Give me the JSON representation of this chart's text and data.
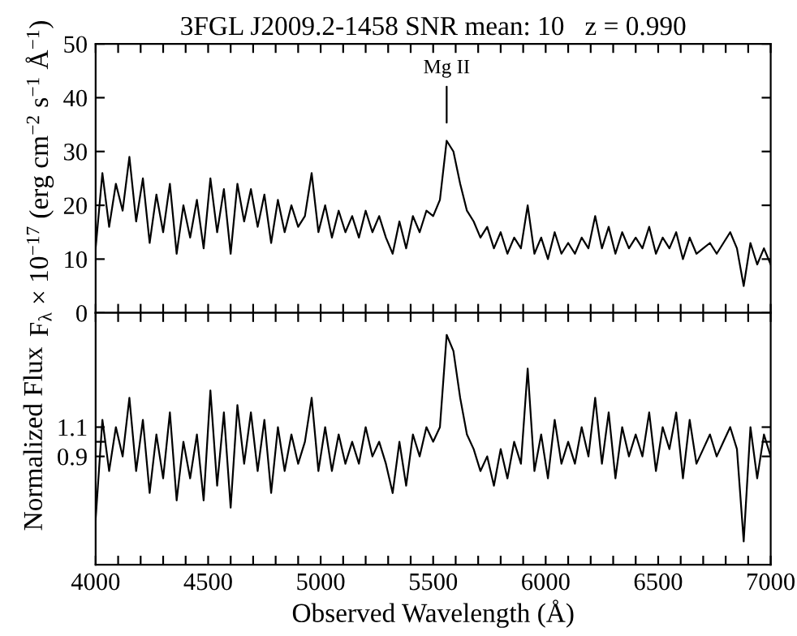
{
  "chart_data": [
    {
      "type": "line",
      "title": "3FGL J2009.2-1458 SNR mean: 10   z = 0.990",
      "ylabel": "F$_{λ}$ × 10$^{−17}$ (erg cm$^{−2}$ s$^{−1}$ Å$^{−1}$)",
      "x": [
        4000,
        4030,
        4060,
        4090,
        4120,
        4150,
        4180,
        4210,
        4240,
        4270,
        4300,
        4330,
        4360,
        4390,
        4420,
        4450,
        4480,
        4510,
        4540,
        4570,
        4600,
        4630,
        4660,
        4690,
        4720,
        4750,
        4780,
        4810,
        4840,
        4870,
        4900,
        4930,
        4960,
        4990,
        5020,
        5050,
        5080,
        5110,
        5140,
        5170,
        5200,
        5230,
        5260,
        5290,
        5320,
        5350,
        5380,
        5410,
        5440,
        5470,
        5500,
        5530,
        5560,
        5590,
        5620,
        5650,
        5680,
        5710,
        5740,
        5770,
        5800,
        5830,
        5860,
        5890,
        5920,
        5950,
        5980,
        6010,
        6040,
        6070,
        6100,
        6130,
        6160,
        6190,
        6220,
        6250,
        6280,
        6310,
        6340,
        6370,
        6400,
        6430,
        6460,
        6490,
        6520,
        6550,
        6580,
        6610,
        6640,
        6670,
        6700,
        6730,
        6760,
        6790,
        6820,
        6850,
        6880,
        6910,
        6940,
        6970,
        7000
      ],
      "series": [
        {
          "color": "#000000",
          "values": [
            12,
            26,
            16,
            24,
            19,
            29,
            17,
            25,
            13,
            22,
            15,
            24,
            11,
            20,
            14,
            21,
            12,
            25,
            15,
            23,
            11,
            24,
            17,
            23,
            16,
            22,
            13,
            21,
            15,
            20,
            16,
            18,
            26,
            15,
            20,
            14,
            19,
            15,
            18,
            14,
            19,
            15,
            18,
            14,
            11,
            17,
            12,
            18,
            15,
            19,
            18,
            21,
            32,
            30,
            24,
            19,
            17,
            14,
            16,
            12,
            15,
            11,
            14,
            12,
            20,
            11,
            14,
            10,
            15,
            11,
            13,
            11,
            14,
            12,
            18,
            12,
            16,
            11,
            15,
            12,
            14,
            12,
            16,
            11,
            14,
            12,
            15,
            10,
            14,
            11,
            12,
            13,
            11,
            13,
            15,
            12,
            5,
            13,
            9,
            12,
            9
          ]
        }
      ],
      "xlim": [
        4000,
        7000
      ],
      "xticks": [
        4000,
        {
          "value": 4100,
          "label": null
        },
        {
          "value": 4200,
          "label": null
        },
        {
          "value": 4300,
          "label": null
        },
        {
          "value": 4400,
          "label": null
        },
        4500,
        {
          "value": 4600,
          "label": null
        },
        {
          "value": 4700,
          "label": null
        },
        {
          "value": 4800,
          "label": null
        },
        {
          "value": 4900,
          "label": null
        },
        5000,
        {
          "value": 5100,
          "label": null
        },
        {
          "value": 5200,
          "label": null
        },
        {
          "value": 5300,
          "label": null
        },
        {
          "value": 5400,
          "label": null
        },
        5500,
        {
          "value": 5600,
          "label": null
        },
        {
          "value": 5700,
          "label": null
        },
        {
          "value": 5800,
          "label": null
        },
        {
          "value": 5900,
          "label": null
        },
        6000,
        {
          "value": 6100,
          "label": null
        },
        {
          "value": 6200,
          "label": null
        },
        {
          "value": 6300,
          "label": null
        },
        {
          "value": 6400,
          "label": null
        },
        6500,
        {
          "value": 6600,
          "label": null
        },
        {
          "value": 6700,
          "label": null
        },
        {
          "value": 6800,
          "label": null
        },
        {
          "value": 6900,
          "label": null
        },
        7000
      ],
      "ylim": [
        0,
        50
      ],
      "yticks": [
        0,
        10,
        20,
        30,
        40,
        50
      ],
      "tick_labels": "y",
      "grid": false,
      "legend": false,
      "marker": "none",
      "line_style": "solid",
      "annotations": [
        "Mg II"
      ]
    },
    {
      "type": "line",
      "xlabel": "Observed Wavelength (Å)",
      "ylabel": "Normalized Flux",
      "x": [
        4000,
        4030,
        4060,
        4090,
        4120,
        4150,
        4180,
        4210,
        4240,
        4270,
        4300,
        4330,
        4360,
        4390,
        4420,
        4450,
        4480,
        4510,
        4540,
        4570,
        4600,
        4630,
        4660,
        4690,
        4720,
        4750,
        4780,
        4810,
        4840,
        4870,
        4900,
        4930,
        4960,
        4990,
        5020,
        5050,
        5080,
        5110,
        5140,
        5170,
        5200,
        5230,
        5260,
        5290,
        5320,
        5350,
        5380,
        5410,
        5440,
        5470,
        5500,
        5530,
        5560,
        5590,
        5620,
        5650,
        5680,
        5710,
        5740,
        5770,
        5800,
        5830,
        5860,
        5890,
        5920,
        5950,
        5980,
        6010,
        6040,
        6070,
        6100,
        6130,
        6160,
        6190,
        6220,
        6250,
        6280,
        6310,
        6340,
        6370,
        6400,
        6430,
        6460,
        6490,
        6520,
        6550,
        6580,
        6610,
        6640,
        6670,
        6700,
        6730,
        6760,
        6790,
        6820,
        6850,
        6880,
        6910,
        6940,
        6970,
        7000
      ],
      "series": [
        {
          "color": "#000000",
          "values": [
            0.47,
            1.15,
            0.8,
            1.1,
            0.9,
            1.3,
            0.8,
            1.15,
            0.65,
            1.05,
            0.75,
            1.2,
            0.6,
            1.0,
            0.75,
            1.05,
            0.6,
            1.35,
            0.7,
            1.2,
            0.55,
            1.25,
            0.85,
            1.2,
            0.8,
            1.15,
            0.65,
            1.1,
            0.8,
            1.05,
            0.85,
            1.0,
            1.3,
            0.8,
            1.1,
            0.8,
            1.05,
            0.85,
            1.0,
            0.85,
            1.1,
            0.9,
            1.0,
            0.85,
            0.65,
            1.0,
            0.7,
            1.05,
            0.9,
            1.1,
            1.0,
            1.1,
            1.73,
            1.62,
            1.3,
            1.05,
            0.95,
            0.8,
            0.9,
            0.7,
            0.95,
            0.75,
            1.0,
            0.85,
            1.5,
            0.8,
            1.05,
            0.75,
            1.15,
            0.85,
            1.0,
            0.85,
            1.1,
            0.9,
            1.3,
            0.85,
            1.2,
            0.75,
            1.1,
            0.9,
            1.05,
            0.9,
            1.2,
            0.8,
            1.1,
            0.95,
            1.2,
            0.75,
            1.15,
            0.85,
            0.95,
            1.05,
            0.9,
            1.0,
            1.1,
            0.95,
            0.32,
            1.1,
            0.75,
            1.05,
            0.9
          ]
        }
      ],
      "xlim": [
        4000,
        7000
      ],
      "xticks": [
        4000,
        {
          "value": 4100,
          "label": null
        },
        {
          "value": 4200,
          "label": null
        },
        {
          "value": 4300,
          "label": null
        },
        {
          "value": 4400,
          "label": null
        },
        4500,
        {
          "value": 4600,
          "label": null
        },
        {
          "value": 4700,
          "label": null
        },
        {
          "value": 4800,
          "label": null
        },
        {
          "value": 4900,
          "label": null
        },
        5000,
        {
          "value": 5100,
          "label": null
        },
        {
          "value": 5200,
          "label": null
        },
        {
          "value": 5300,
          "label": null
        },
        {
          "value": 5400,
          "label": null
        },
        5500,
        {
          "value": 5600,
          "label": null
        },
        {
          "value": 5700,
          "label": null
        },
        {
          "value": 5800,
          "label": null
        },
        {
          "value": 5900,
          "label": null
        },
        6000,
        {
          "value": 6100,
          "label": null
        },
        {
          "value": 6200,
          "label": null
        },
        {
          "value": 6300,
          "label": null
        },
        {
          "value": 6400,
          "label": null
        },
        6500,
        {
          "value": 6600,
          "label": null
        },
        {
          "value": 6700,
          "label": null
        },
        {
          "value": 6800,
          "label": null
        },
        {
          "value": 6900,
          "label": null
        },
        7000
      ],
      "ylim": [
        0.16,
        1.88
      ],
      "yticks": [
        0.9,
        {
          "value": 1.0,
          "label": null
        },
        1.1
      ],
      "grid": false,
      "legend": false,
      "marker": "none",
      "line_style": "solid"
    }
  ]
}
